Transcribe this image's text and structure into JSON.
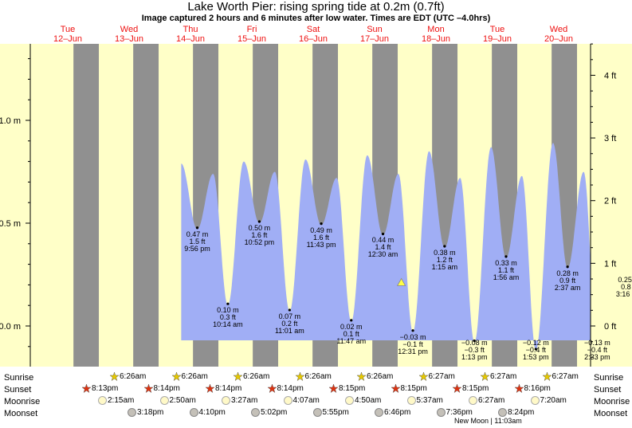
{
  "title": "Lake Worth Pier: rising  spring tide at 0.2m (0.7ft)",
  "subtitle": "Image captured 2 hours and 6 minutes after low water. Times are EDT (UTC –4.0hrs)",
  "colors": {
    "day": "#ffffc8",
    "night": "#909090",
    "water": "#a0aef5",
    "header": "#ee1111",
    "marker": "#ffff44"
  },
  "chart_data": {
    "type": "area",
    "days": [
      {
        "dow": "Tue",
        "date": "12–Jun"
      },
      {
        "dow": "Wed",
        "date": "13–Jun"
      },
      {
        "dow": "Thu",
        "date": "14–Jun"
      },
      {
        "dow": "Fri",
        "date": "15–Jun"
      },
      {
        "dow": "Sat",
        "date": "16–Jun"
      },
      {
        "dow": "Sun",
        "date": "17–Jun"
      },
      {
        "dow": "Mon",
        "date": "18–Jun"
      },
      {
        "dow": "Tue",
        "date": "19–Jun"
      },
      {
        "dow": "Wed",
        "date": "20–Jun"
      }
    ],
    "left_axis": {
      "unit": "m",
      "ticks": [
        {
          "v": 0,
          "label": "0.0 m"
        },
        {
          "v": 0.5,
          "label": "0.5 m"
        },
        {
          "v": 1.0,
          "label": "1.0 m"
        }
      ]
    },
    "right_axis": {
      "unit": "ft",
      "ticks": [
        {
          "v": 0,
          "label": "0 ft"
        },
        {
          "v": 1,
          "label": "1 ft"
        },
        {
          "v": 2,
          "label": "2 ft"
        },
        {
          "v": 3,
          "label": "3 ft"
        },
        {
          "v": 4,
          "label": "4 ft"
        }
      ]
    },
    "ylim_m": [
      -0.2,
      1.38
    ],
    "series_extrema": [
      {
        "kind": "low",
        "m": "0.47 m",
        "ft": "1.5 ft",
        "time": "9:56 pm",
        "hour": 45.93,
        "h": 0.47
      },
      {
        "kind": "low",
        "m": "0.10 m",
        "ft": "0.3 ft",
        "time": "10:14 am",
        "hour": 58.23,
        "h": 0.1
      },
      {
        "kind": "low",
        "m": "0.50 m",
        "ft": "1.6 ft",
        "time": "10:52 pm",
        "hour": 70.87,
        "h": 0.5
      },
      {
        "kind": "low",
        "m": "0.07 m",
        "ft": "0.2 ft",
        "time": "11:01 am",
        "hour": 83.02,
        "h": 0.07
      },
      {
        "kind": "low",
        "m": "0.49 m",
        "ft": "1.6 ft",
        "time": "11:43 pm",
        "hour": 95.72,
        "h": 0.49
      },
      {
        "kind": "low",
        "m": "0.02 m",
        "ft": "0.1 ft",
        "time": "11:47 am",
        "hour": 107.78,
        "h": 0.02
      },
      {
        "kind": "low",
        "m": "0.44 m",
        "ft": "1.4 ft",
        "time": "12:30 am",
        "hour": 120.5,
        "h": 0.44
      },
      {
        "kind": "low",
        "m": "−0.03 m",
        "ft": "−0.1 ft",
        "time": "12:31 pm",
        "hour": 132.52,
        "h": -0.03
      },
      {
        "kind": "low",
        "m": "0.38 m",
        "ft": "1.2 ft",
        "time": "1:15 am",
        "hour": 145.25,
        "h": 0.38
      },
      {
        "kind": "low",
        "m": "−0.08 m",
        "ft": "−0.3 ft",
        "time": "1:13 pm",
        "hour": 157.22,
        "h": -0.08
      },
      {
        "kind": "low",
        "m": "0.33 m",
        "ft": "1.1 ft",
        "time": "1:56 am",
        "hour": 169.93,
        "h": 0.33
      },
      {
        "kind": "low",
        "m": "−0.12 m",
        "ft": "−0.4 ft",
        "time": "1:53 pm",
        "hour": 181.88,
        "h": -0.12
      },
      {
        "kind": "low",
        "m": "0.28 m",
        "ft": "0.9 ft",
        "time": "2:37 am",
        "hour": 194.62,
        "h": 0.28
      },
      {
        "kind": "low",
        "m": "−0.13 m",
        "ft": "−0.4 ft",
        "time": "2:33 pm",
        "hour": 206.55,
        "h": -0.13
      },
      {
        "kind": "low",
        "m": "0.25 m",
        "ft": "0.8 ft",
        "time": "3:16 am",
        "hour": 219.27,
        "h": 0.25
      }
    ],
    "current_level_m": 0.2
  },
  "astro": {
    "labels": {
      "sunrise": "Sunrise",
      "sunset": "Sunset",
      "moonrise": "Moonrise",
      "moonset": "Moonset"
    },
    "sunrise": [
      "6:26am",
      "6:26am",
      "6:26am",
      "6:26am",
      "6:26am",
      "6:27am",
      "6:27am",
      "6:27am"
    ],
    "sunset": [
      "8:13pm",
      "8:14pm",
      "8:14pm",
      "8:14pm",
      "8:15pm",
      "8:15pm",
      "8:15pm",
      "8:16pm"
    ],
    "moonrise": [
      "2:15am",
      "2:50am",
      "3:27am",
      "4:07am",
      "4:50am",
      "5:37am",
      "6:27am",
      "7:20am"
    ],
    "moonset": [
      "3:18pm",
      "4:10pm",
      "5:02pm",
      "5:55pm",
      "6:46pm",
      "7:36pm",
      "8:24pm"
    ],
    "new_moon": "New Moon | 11:03am"
  }
}
